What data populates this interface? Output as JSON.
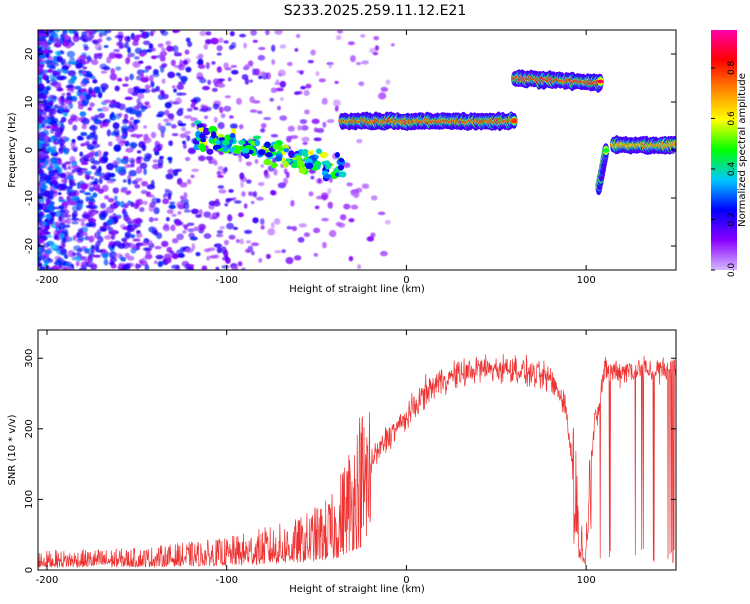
{
  "title": "S233.2025.259.11.12.E21",
  "chart_data": [
    {
      "type": "heatmap",
      "name": "spectrogram",
      "xlabel": "Height of straight line (km)",
      "ylabel": "Frequency (Hz)",
      "xlim": [
        -205,
        150
      ],
      "ylim": [
        -25,
        25
      ],
      "xticks": [
        -200,
        -100,
        0,
        100
      ],
      "xtick_labels": [
        "-200",
        "-100",
        "0",
        "100"
      ],
      "yticks": [
        -20,
        -10,
        0,
        10,
        20
      ],
      "ytick_labels": [
        "-20",
        "-10",
        "0",
        "10",
        "20"
      ],
      "colorbar": {
        "label": "Normalized spectral amplitude",
        "range": [
          0.0,
          0.95
        ],
        "ticks": [
          0.0,
          0.2,
          0.4,
          0.6,
          0.8
        ],
        "tick_labels": [
          "0.0",
          "0.2",
          "0.4",
          "0.6",
          "0.8"
        ],
        "colors": [
          "#d8b8ff",
          "#8800ff",
          "#0000ff",
          "#00c8ff",
          "#00ff00",
          "#ffff00",
          "#ff8800",
          "#ff0000",
          "#ff00aa"
        ]
      },
      "signal_track": [
        {
          "x": [
            -118,
            -35
          ],
          "freq": [
            3,
            -4
          ],
          "amplitude": 0.45,
          "style": "scattered"
        },
        {
          "x": [
            -36,
            60
          ],
          "freq": [
            6,
            6
          ],
          "amplitude": 0.9,
          "style": "band"
        },
        {
          "x": [
            60,
            108
          ],
          "freq": [
            15,
            14
          ],
          "amplitude": 0.95,
          "style": "band"
        },
        {
          "x": [
            107,
            111
          ],
          "freq": [
            -8,
            0
          ],
          "amplitude": 0.5,
          "style": "band"
        },
        {
          "x": [
            115,
            150
          ],
          "freq": [
            1,
            1
          ],
          "amplitude": 0.8,
          "style": "band"
        }
      ]
    },
    {
      "type": "line",
      "name": "snr",
      "xlabel": "Height of straight line (km)",
      "ylabel": "SNR (10 * v/v)",
      "xlim": [
        -205,
        150
      ],
      "ylim": [
        0,
        340
      ],
      "xticks": [
        -200,
        -100,
        0,
        100
      ],
      "xtick_labels": [
        "-200",
        "-100",
        "0",
        "100"
      ],
      "yticks": [
        0,
        100,
        200,
        300
      ],
      "ytick_labels": [
        "0",
        "100",
        "200",
        "300"
      ],
      "color": "#ee3333",
      "envelope": {
        "x": [
          -205,
          -150,
          -100,
          -60,
          -40,
          -30,
          -20,
          -10,
          0,
          10,
          20,
          40,
          60,
          80,
          88,
          92,
          96,
          100,
          104,
          110,
          130,
          150
        ],
        "y": [
          15,
          17,
          25,
          40,
          60,
          110,
          150,
          190,
          215,
          250,
          270,
          285,
          285,
          270,
          240,
          160,
          50,
          30,
          200,
          280,
          285,
          280
        ]
      }
    }
  ]
}
